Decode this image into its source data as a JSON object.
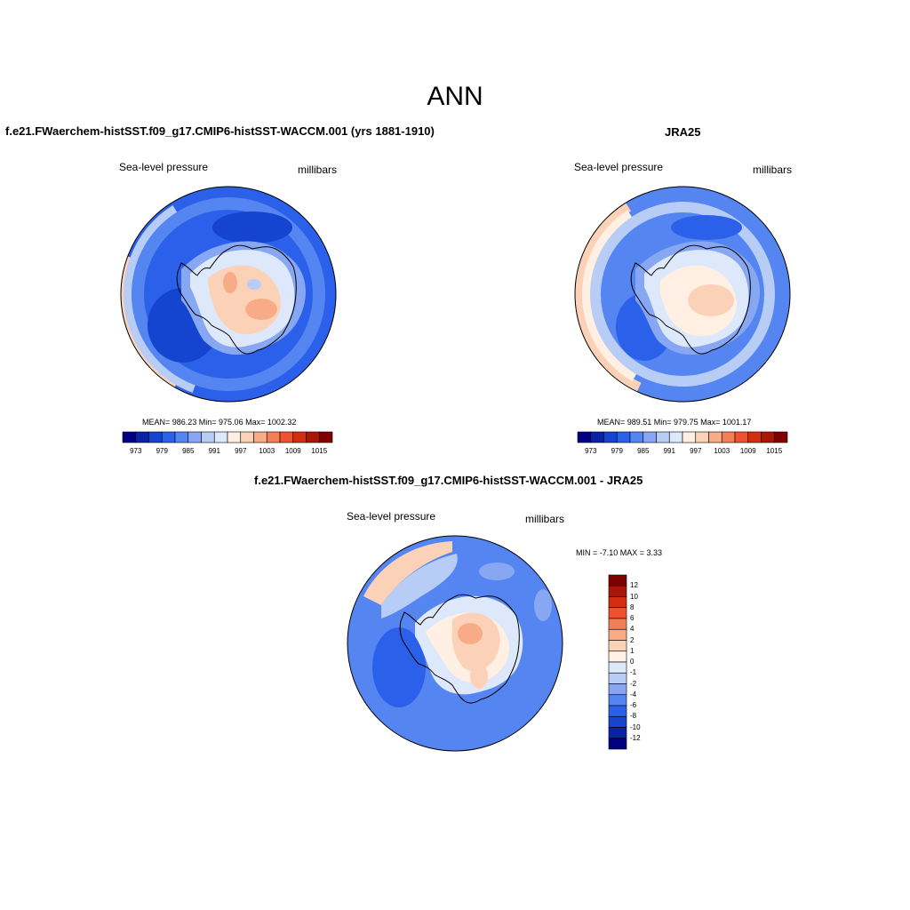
{
  "figure": {
    "title": "ANN"
  },
  "panels": [
    {
      "id": "model",
      "title": "f.e21.FWaerchem-histSST.f09_g17.CMIP6-histSST-WACCM.001 (yrs 1881-1910)",
      "left_label": "Sea-level pressure",
      "right_label": "millibars",
      "stats": "MEAN= 986.23  Min= 975.06  Max= 1002.32",
      "stats_values": {
        "mean": 986.23,
        "min": 975.06,
        "max": 1002.32
      }
    },
    {
      "id": "obs",
      "title": "JRA25",
      "left_label": "Sea-level pressure",
      "right_label": "millibars",
      "stats": "MEAN= 989.51  Min= 979.75  Max= 1001.17",
      "stats_values": {
        "mean": 989.51,
        "min": 979.75,
        "max": 1001.17
      }
    },
    {
      "id": "diff",
      "title": "f.e21.FWaerchem-histSST.f09_g17.CMIP6-histSST-WACCM.001 - JRA25",
      "left_label": "Sea-level pressure",
      "right_label": "millibars",
      "stats": "MIN =  -7.10 MAX =   3.33",
      "stats_values": {
        "min": -7.1,
        "max": 3.33
      }
    }
  ],
  "colorbars": {
    "absolute": {
      "orientation": "horizontal",
      "tick_labels": [
        "973",
        "979",
        "985",
        "991",
        "997",
        "1003",
        "1009",
        "1015"
      ],
      "colors": [
        "#000080",
        "#0a23a6",
        "#1444d0",
        "#2b61ea",
        "#5585f0",
        "#87a7f3",
        "#b7cdf6",
        "#dde9fb",
        "#fff0e3",
        "#fbd2b8",
        "#f7ab87",
        "#f47f57",
        "#ee5230",
        "#d42d10",
        "#aa1606",
        "#800000"
      ]
    },
    "difference": {
      "orientation": "vertical",
      "tick_labels": [
        "12",
        "10",
        "8",
        "6",
        "4",
        "2",
        "1",
        "0",
        "-1",
        "-2",
        "-4",
        "-6",
        "-8",
        "-10",
        "-12"
      ],
      "colors": [
        "#800000",
        "#aa1606",
        "#d42d10",
        "#ee5230",
        "#f47f57",
        "#f7ab87",
        "#fbd2b8",
        "#fff0e3",
        "#dde9fb",
        "#b7cdf6",
        "#87a7f3",
        "#5585f0",
        "#2b61ea",
        "#1444d0",
        "#0a23a6",
        "#000080"
      ]
    }
  },
  "map_colors": {
    "land_low": "#fbd2b8",
    "land_high": "#f7ab87",
    "ocean_pale": "#dde9fb",
    "ocean_light": "#b7cdf6",
    "ocean_mid": "#87a7f3",
    "ocean_blue": "#5585f0",
    "ocean_deep": "#2b61ea",
    "ocean_darker": "#1444d0",
    "ring_pink": "#fbd2b8",
    "ring_cream": "#fff0e3"
  }
}
